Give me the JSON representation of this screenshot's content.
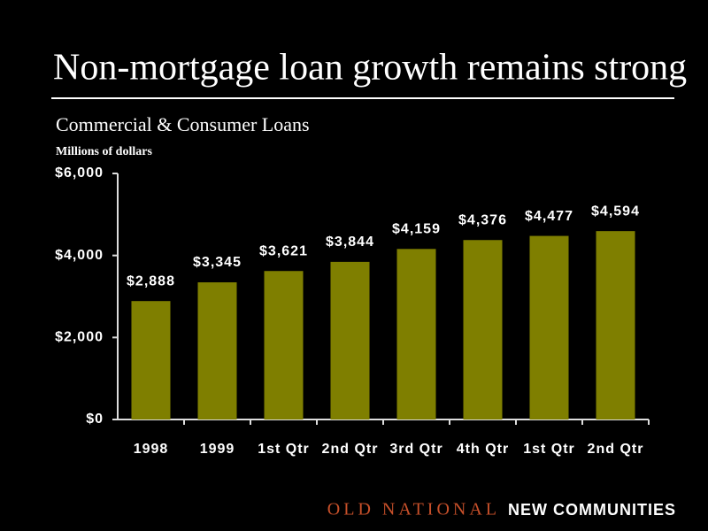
{
  "chart_data": {
    "type": "bar",
    "title": "Non-mortgage loan growth remains strong",
    "subtitle": "Commercial & Consumer Loans",
    "ylabel": "Millions of dollars",
    "categories": [
      "1998",
      "1999",
      "1st Qtr",
      "2nd Qtr",
      "3rd Qtr",
      "4th Qtr",
      "1st Qtr",
      "2nd Qtr"
    ],
    "values": [
      2888,
      3345,
      3621,
      3844,
      4159,
      4376,
      4477,
      4594
    ],
    "value_labels": [
      "$2,888",
      "$3,345",
      "$3,621",
      "$3,844",
      "$4,159",
      "$4,376",
      "$4,477",
      "$4,594"
    ],
    "color": "#7f7f00",
    "ylim": [
      0,
      6000
    ],
    "yticks": [
      {
        "value": 0,
        "label": "$0"
      },
      {
        "value": 2000,
        "label": "$2,000"
      },
      {
        "value": 4000,
        "label": "$4,000"
      },
      {
        "value": 6000,
        "label": "$6,000"
      }
    ]
  },
  "footer": {
    "brand": "OLD NATIONAL",
    "tagline": "NEW COMMUNITIES"
  }
}
